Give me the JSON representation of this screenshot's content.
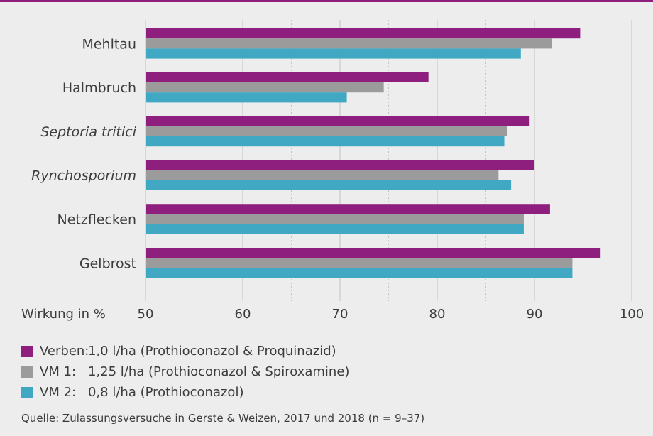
{
  "chart_data": {
    "type": "bar",
    "orientation": "horizontal",
    "categories": [
      "Mehltau",
      "Halmbruch",
      "Septoria tritici",
      "Rynchosporium",
      "Netzflecken",
      "Gelbrost"
    ],
    "italic_categories": [
      "Septoria tritici",
      "Rynchosporium"
    ],
    "series": [
      {
        "name": "Verben:",
        "description": "1,0 l/ha (Prothioconazol & Proquinazid)",
        "color": "#8e1f7f",
        "values": [
          94.7,
          79.1,
          89.5,
          90.0,
          91.6,
          96.8
        ]
      },
      {
        "name": "VM 1:",
        "description": "1,25 l/ha (Prothioconazol & Spiroxamine)",
        "color": "#9b9b9b",
        "values": [
          91.8,
          74.5,
          87.2,
          86.3,
          88.9,
          93.9
        ]
      },
      {
        "name": "VM 2:",
        "description": "0,8 l/ha (Prothioconazol)",
        "color": "#41a8c4",
        "values": [
          88.6,
          70.7,
          86.9,
          87.6,
          88.9,
          93.9
        ]
      }
    ],
    "xlabel": "Wirkung in %",
    "xlim": [
      50,
      100
    ],
    "xticks": [
      50,
      60,
      70,
      80,
      90,
      100
    ],
    "grid": true,
    "legend_position": "bottom"
  },
  "source": "Quelle: Zulassungsversuche in Gerste & Weizen, 2017 und 2018 (n = 9–37)"
}
